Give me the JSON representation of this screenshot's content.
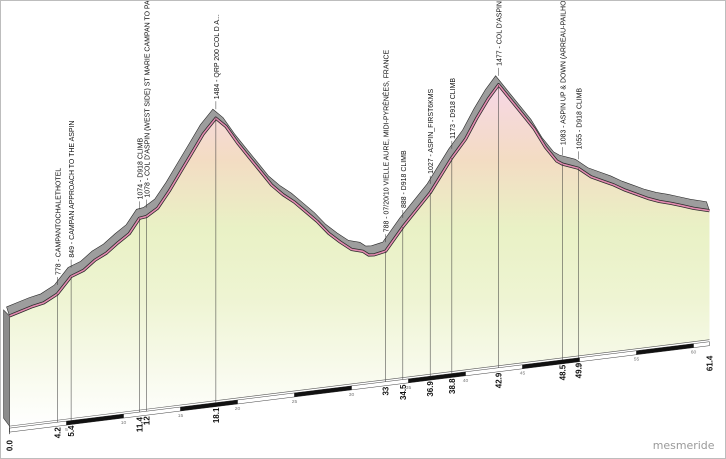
{
  "brand": "mesmeride",
  "chart_data": {
    "type": "area",
    "xlabel": "",
    "ylabel": "",
    "profile": [
      {
        "x": 0.0,
        "y": 705
      },
      {
        "x": 1.0,
        "y": 720
      },
      {
        "x": 2.0,
        "y": 735
      },
      {
        "x": 3.0,
        "y": 745
      },
      {
        "x": 4.2,
        "y": 778
      },
      {
        "x": 5.4,
        "y": 849
      },
      {
        "x": 6.5,
        "y": 870
      },
      {
        "x": 7.5,
        "y": 910
      },
      {
        "x": 8.5,
        "y": 935
      },
      {
        "x": 9.5,
        "y": 975
      },
      {
        "x": 10.5,
        "y": 1010
      },
      {
        "x": 11.4,
        "y": 1074
      },
      {
        "x": 12.0,
        "y": 1078
      },
      {
        "x": 13.0,
        "y": 1110
      },
      {
        "x": 14.0,
        "y": 1180
      },
      {
        "x": 15.0,
        "y": 1260
      },
      {
        "x": 16.0,
        "y": 1340
      },
      {
        "x": 17.0,
        "y": 1420
      },
      {
        "x": 18.1,
        "y": 1484
      },
      {
        "x": 19.0,
        "y": 1440
      },
      {
        "x": 20.0,
        "y": 1360
      },
      {
        "x": 21.0,
        "y": 1290
      },
      {
        "x": 22.0,
        "y": 1220
      },
      {
        "x": 23.0,
        "y": 1150
      },
      {
        "x": 24.0,
        "y": 1100
      },
      {
        "x": 25.0,
        "y": 1060
      },
      {
        "x": 26.0,
        "y": 1010
      },
      {
        "x": 27.0,
        "y": 960
      },
      {
        "x": 28.0,
        "y": 900
      },
      {
        "x": 29.0,
        "y": 855
      },
      {
        "x": 30.0,
        "y": 815
      },
      {
        "x": 31.0,
        "y": 800
      },
      {
        "x": 31.5,
        "y": 780
      },
      {
        "x": 32.0,
        "y": 778
      },
      {
        "x": 33.0,
        "y": 788
      },
      {
        "x": 34.5,
        "y": 888
      },
      {
        "x": 36.9,
        "y": 1027
      },
      {
        "x": 38.8,
        "y": 1173
      },
      {
        "x": 40.0,
        "y": 1250
      },
      {
        "x": 41.0,
        "y": 1340
      },
      {
        "x": 42.0,
        "y": 1420
      },
      {
        "x": 42.9,
        "y": 1477
      },
      {
        "x": 44.0,
        "y": 1400
      },
      {
        "x": 45.0,
        "y": 1330
      },
      {
        "x": 46.0,
        "y": 1260
      },
      {
        "x": 47.0,
        "y": 1170
      },
      {
        "x": 48.0,
        "y": 1100
      },
      {
        "x": 48.5,
        "y": 1083
      },
      {
        "x": 49.9,
        "y": 1055
      },
      {
        "x": 51.0,
        "y": 1010
      },
      {
        "x": 52.0,
        "y": 985
      },
      {
        "x": 53.0,
        "y": 960
      },
      {
        "x": 54.0,
        "y": 930
      },
      {
        "x": 55.0,
        "y": 905
      },
      {
        "x": 56.0,
        "y": 880
      },
      {
        "x": 57.0,
        "y": 860
      },
      {
        "x": 58.0,
        "y": 845
      },
      {
        "x": 59.0,
        "y": 828
      },
      {
        "x": 60.0,
        "y": 810
      },
      {
        "x": 61.4,
        "y": 790
      }
    ],
    "annotations": [
      {
        "x": 4.2,
        "y": 778,
        "dist": "4.2",
        "text": "778 - CAMPANTOCHALETHOTEL"
      },
      {
        "x": 5.4,
        "y": 849,
        "dist": "5.4",
        "text": "849 - CAMPAN APPROACH TO THE ASPIN"
      },
      {
        "x": 11.4,
        "y": 1074,
        "dist": "11.4",
        "text": "1074 - D918 CLIMB"
      },
      {
        "x": 12.0,
        "y": 1078,
        "dist": "12",
        "text": "1078 - COL D'ASPIN (WEST SIDE) ST MARIE CAMPAN TO PAY..."
      },
      {
        "x": 18.1,
        "y": 1484,
        "dist": "18.1",
        "text": "1484 - QRP 200 COL D A..."
      },
      {
        "x": 33.0,
        "y": 788,
        "dist": "33",
        "text": "788 - 07/20/10 VIELLE AURE, MIDI-PYRÉNÉES, FRANCE"
      },
      {
        "x": 34.5,
        "y": 888,
        "dist": "34.5",
        "text": "888 - D918 CLIMB"
      },
      {
        "x": 36.9,
        "y": 1027,
        "dist": "36.9",
        "text": "1027 - ASPIN_FIRST6KMS"
      },
      {
        "x": 38.8,
        "y": 1173,
        "dist": "38.8",
        "text": "1173 - D918 CLIMB"
      },
      {
        "x": 42.9,
        "y": 1477,
        "dist": "42.9",
        "text": "1477 - COL D'ASPIN"
      },
      {
        "x": 48.5,
        "y": 1083,
        "dist": "48.5",
        "text": "1083 - ASPIN UP & DOWN (ARREAU-PAILHOLE)"
      },
      {
        "x": 49.9,
        "y": 1055,
        "dist": "49.9",
        "text": "1055 - D918 CLIMB"
      }
    ],
    "endpoints": [
      {
        "x": 0.0,
        "label": "0.0"
      },
      {
        "x": 61.4,
        "label": "61.4"
      }
    ],
    "axis_ticks": [
      "5",
      "10",
      "15",
      "20",
      "25",
      "30",
      "35",
      "40",
      "45",
      "50",
      "55",
      "60"
    ],
    "xlim": [
      0,
      61.4
    ]
  }
}
